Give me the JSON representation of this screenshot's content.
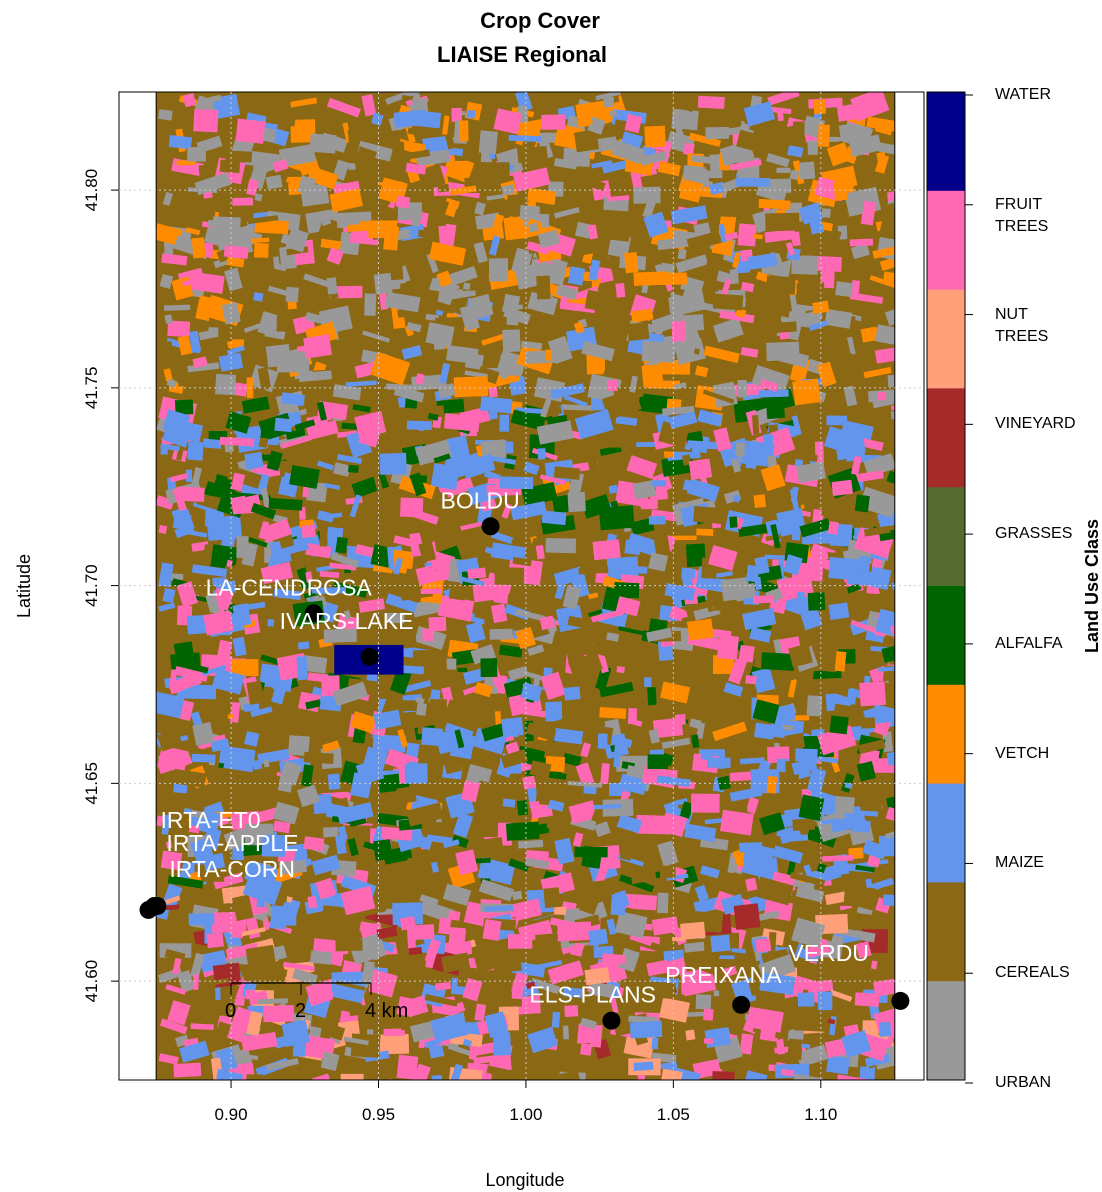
{
  "map": {
    "title": "Crop Cover",
    "subtitle": "LIAISE Regional",
    "x_label": "Longitude",
    "y_label": "Latitude",
    "xlim": [
      0.862,
      1.135
    ],
    "ylim": [
      41.575,
      41.8248
    ],
    "xticks": [
      {
        "value": 0.9,
        "label": "0.90"
      },
      0.95,
      {
        "value": 1.0,
        "label": "1.00"
      },
      1.05,
      {
        "value": 1.1,
        "label": "1.10"
      }
    ],
    "yticks": [
      {
        "value": 41.6,
        "label": "41.60"
      },
      41.65,
      {
        "value": 41.7,
        "label": "41.70"
      },
      41.75,
      {
        "value": 41.8,
        "label": "41.80"
      }
    ],
    "grid": true,
    "raster_lon": [
      0.8746,
      1.1251
    ],
    "legend": {
      "title": "Land Use Class",
      "classes": [
        {
          "name": "WATER",
          "color": "#00008b"
        },
        {
          "name": "FRUIT TREES",
          "color": "#ff69b4"
        },
        {
          "name": "NUT TREES",
          "color": "#ffa07a"
        },
        {
          "name": "VINEYARD",
          "color": "#a52a2a"
        },
        {
          "name": "GRASSES",
          "color": "#556b2f"
        },
        {
          "name": "ALFALFA",
          "color": "#006400"
        },
        {
          "name": "VETCH",
          "color": "#ff8c00"
        },
        {
          "name": "MAIZE",
          "color": "#6495ed"
        },
        {
          "name": "CEREALS",
          "color": "#8b6914"
        },
        {
          "name": "URBAN",
          "color": "#999999"
        }
      ]
    },
    "stations": [
      {
        "name": "BOLDU",
        "lon": 0.988,
        "lat": 41.715
      },
      {
        "name": "LA-CENDROSA",
        "lon": 0.928,
        "lat": 41.693
      },
      {
        "name": "IVARS-LAKE",
        "lon": 0.947,
        "lat": 41.682
      },
      {
        "name": "IRTA-ET0",
        "lon": 0.872,
        "lat": 41.618
      },
      {
        "name": "IRTA-APPLE",
        "lon": 0.874,
        "lat": 41.619
      },
      {
        "name": "IRTA-CORN",
        "lon": 0.875,
        "lat": 41.619
      },
      {
        "name": "ELS-PLANS",
        "lon": 1.029,
        "lat": 41.59
      },
      {
        "name": "PREIXANA",
        "lon": 1.073,
        "lat": 41.594
      },
      {
        "name": "VERDU",
        "lon": 1.127,
        "lat": 41.595
      }
    ],
    "scale_bar": {
      "labels": [
        "0",
        "2",
        "4 km"
      ]
    }
  }
}
